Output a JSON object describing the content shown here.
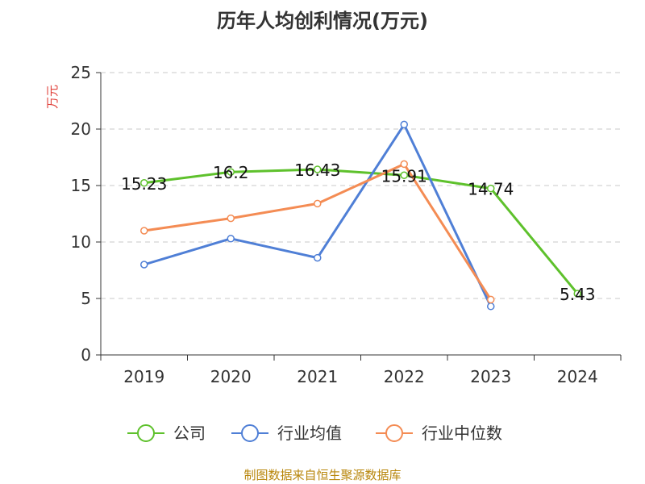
{
  "chart_data": {
    "type": "line",
    "title": "历年人均创利情况(万元)",
    "ylabel": "万元",
    "xlabel": "",
    "categories": [
      "2019",
      "2020",
      "2021",
      "2022",
      "2023",
      "2024"
    ],
    "ylim": [
      0,
      25
    ],
    "yticks": [
      0,
      5,
      10,
      15,
      20,
      25
    ],
    "grid": true,
    "legend_position": "bottom",
    "series": [
      {
        "name": "公司",
        "color": "#5ec12c",
        "values": [
          15.23,
          16.2,
          16.43,
          15.91,
          14.74,
          5.43
        ],
        "show_labels": true
      },
      {
        "name": "行业均值",
        "color": "#4f7fd6",
        "values": [
          8.0,
          10.3,
          8.6,
          20.4,
          4.3,
          null
        ],
        "show_labels": false
      },
      {
        "name": "行业中位数",
        "color": "#f48c54",
        "values": [
          11.0,
          12.1,
          13.4,
          16.9,
          4.9,
          null
        ],
        "show_labels": false
      }
    ]
  },
  "footer": {
    "source": "制图数据来自恒生聚源数据库"
  }
}
